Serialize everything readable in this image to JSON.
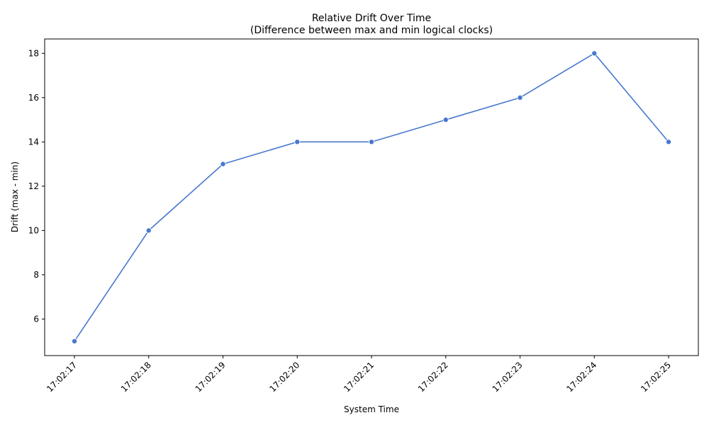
{
  "chart_data": {
    "type": "line",
    "title": "Relative Drift Over Time",
    "subtitle": "(Difference between max and min logical clocks)",
    "xlabel": "System Time",
    "ylabel": "Drift (max - min)",
    "categories": [
      "17:02:17",
      "17:02:18",
      "17:02:19",
      "17:02:20",
      "17:02:21",
      "17:02:22",
      "17:02:23",
      "17:02:24",
      "17:02:25"
    ],
    "series": [
      {
        "values": [
          5,
          10,
          13,
          14,
          14,
          15,
          16,
          18,
          14
        ]
      }
    ],
    "yticks": [
      6,
      8,
      10,
      12,
      14,
      16,
      18
    ],
    "ylim": [
      4.35,
      18.65
    ],
    "grid": false,
    "x_tick_rotation_deg": 45,
    "colors": {
      "line": "#4878cf",
      "marker": "#4878cf",
      "axes": "#000000"
    }
  }
}
